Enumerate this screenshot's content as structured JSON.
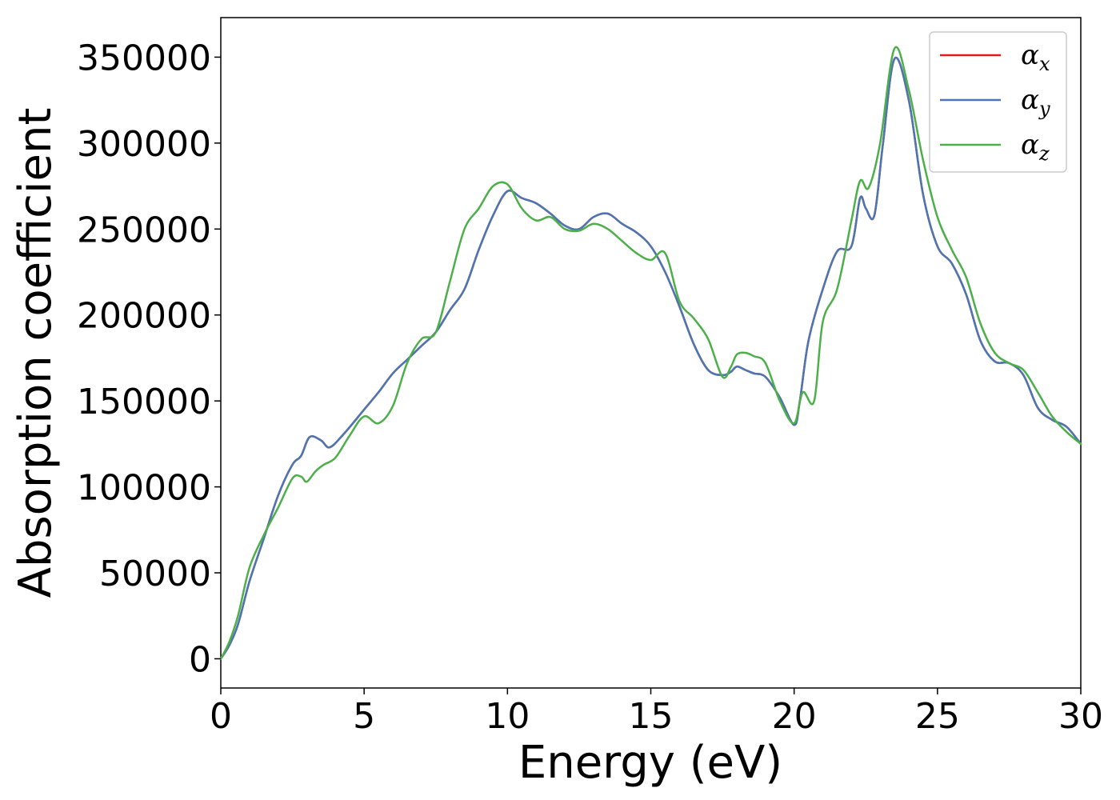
{
  "chart_data": {
    "type": "line",
    "xlabel": "Energy (eV)",
    "ylabel": "Absorption coefficient",
    "xlim": [
      0,
      30
    ],
    "ylim": [
      -17000,
      373000
    ],
    "xticks": [
      0,
      5,
      10,
      15,
      20,
      25,
      30
    ],
    "xtick_labels": [
      "0",
      "5",
      "10",
      "15",
      "20",
      "25",
      "30"
    ],
    "yticks": [
      0,
      50000,
      100000,
      150000,
      200000,
      250000,
      300000,
      350000
    ],
    "ytick_labels": [
      "0",
      "50000",
      "100000",
      "150000",
      "200000",
      "250000",
      "300000",
      "350000"
    ],
    "grid": false,
    "legend_position": "top-right",
    "series": [
      {
        "name": "αx",
        "symbol": "α",
        "subscript": "x",
        "color": "#e41a1c",
        "x": [
          0,
          0.3,
          0.6,
          1,
          1.5,
          2,
          2.5,
          2.8,
          3.1,
          3.5,
          3.8,
          4.3,
          5,
          5.5,
          6,
          6.5,
          7,
          7.5,
          8,
          8.5,
          9,
          9.5,
          10,
          10.5,
          11,
          11.5,
          12,
          12.5,
          13,
          13.5,
          14,
          14.5,
          15,
          15.5,
          16,
          16.5,
          17,
          17.5,
          17.8,
          18,
          18.3,
          18.6,
          19,
          19.5,
          20,
          20.2,
          20.5,
          21,
          21.5,
          22,
          22.3,
          22.5,
          22.8,
          23.1,
          23.5,
          24,
          24.5,
          25,
          25.5,
          26,
          26.5,
          27,
          27.5,
          28,
          28.5,
          29,
          29.5,
          30
        ],
        "y": [
          0,
          8000,
          20000,
          45000,
          70000,
          95000,
          113000,
          118000,
          129000,
          127000,
          123000,
          131000,
          145000,
          155000,
          166000,
          174000,
          182000,
          190000,
          203000,
          215000,
          238000,
          258000,
          272000,
          268000,
          265000,
          259000,
          252000,
          250000,
          257000,
          259000,
          253000,
          248000,
          240000,
          225000,
          205000,
          183000,
          168000,
          165000,
          167000,
          170000,
          168000,
          166000,
          164000,
          152000,
          136000,
          150000,
          185000,
          215000,
          237000,
          240000,
          268000,
          262000,
          258000,
          300000,
          349000,
          325000,
          270000,
          240000,
          230000,
          212000,
          185000,
          173000,
          172000,
          165000,
          146000,
          139000,
          135000,
          125000
        ]
      },
      {
        "name": "αy",
        "symbol": "α",
        "subscript": "y",
        "color": "#4a76b3",
        "x": [
          0,
          0.3,
          0.6,
          1,
          1.5,
          2,
          2.5,
          2.8,
          3.1,
          3.5,
          3.8,
          4.3,
          5,
          5.5,
          6,
          6.5,
          7,
          7.5,
          8,
          8.5,
          9,
          9.5,
          10,
          10.5,
          11,
          11.5,
          12,
          12.5,
          13,
          13.5,
          14,
          14.5,
          15,
          15.5,
          16,
          16.5,
          17,
          17.5,
          17.8,
          18,
          18.3,
          18.6,
          19,
          19.5,
          20,
          20.2,
          20.5,
          21,
          21.5,
          22,
          22.3,
          22.5,
          22.8,
          23.1,
          23.5,
          24,
          24.5,
          25,
          25.5,
          26,
          26.5,
          27,
          27.5,
          28,
          28.5,
          29,
          29.5,
          30
        ],
        "y": [
          0,
          8000,
          20000,
          45000,
          70000,
          95000,
          113000,
          118000,
          129000,
          127000,
          123000,
          131000,
          145000,
          155000,
          166000,
          174000,
          182000,
          190000,
          203000,
          215000,
          238000,
          258000,
          272000,
          268000,
          265000,
          259000,
          252000,
          250000,
          257000,
          259000,
          253000,
          248000,
          240000,
          225000,
          205000,
          183000,
          168000,
          165000,
          167000,
          170000,
          168000,
          166000,
          164000,
          152000,
          136000,
          150000,
          185000,
          215000,
          237000,
          240000,
          268000,
          262000,
          258000,
          300000,
          349000,
          325000,
          270000,
          240000,
          230000,
          212000,
          185000,
          173000,
          172000,
          165000,
          146000,
          139000,
          135000,
          125000
        ]
      },
      {
        "name": "αz",
        "symbol": "α",
        "subscript": "z",
        "color": "#4daf4a",
        "x": [
          0,
          0.3,
          0.6,
          1,
          1.5,
          2,
          2.5,
          2.8,
          3,
          3.3,
          3.6,
          4,
          4.5,
          5,
          5.5,
          6,
          6.5,
          7,
          7.5,
          8,
          8.5,
          9,
          9.5,
          10,
          10.5,
          11,
          11.5,
          12,
          12.5,
          13,
          13.5,
          14,
          14.5,
          15,
          15.5,
          16,
          16.5,
          17,
          17.5,
          17.8,
          18,
          18.3,
          18.6,
          19,
          19.5,
          20,
          20.3,
          20.7,
          21,
          21.5,
          22,
          22.3,
          22.6,
          23,
          23.5,
          24,
          24.5,
          25,
          25.5,
          26,
          26.5,
          27,
          27.5,
          28,
          28.5,
          29,
          29.5,
          30
        ],
        "y": [
          0,
          10000,
          25000,
          53000,
          72000,
          88000,
          105000,
          106000,
          103000,
          109000,
          113000,
          117000,
          130000,
          141000,
          137000,
          147000,
          172000,
          186000,
          190000,
          220000,
          250000,
          262000,
          275000,
          276000,
          262000,
          255000,
          257000,
          250000,
          249000,
          253000,
          250000,
          243000,
          236000,
          232000,
          236000,
          208000,
          198000,
          186000,
          164000,
          170000,
          177000,
          178000,
          176000,
          172000,
          150000,
          137000,
          155000,
          150000,
          196000,
          215000,
          255000,
          278000,
          274000,
          300000,
          355000,
          331000,
          290000,
          257000,
          238000,
          222000,
          195000,
          178000,
          172000,
          168000,
          155000,
          141000,
          132000,
          125000
        ]
      }
    ]
  }
}
